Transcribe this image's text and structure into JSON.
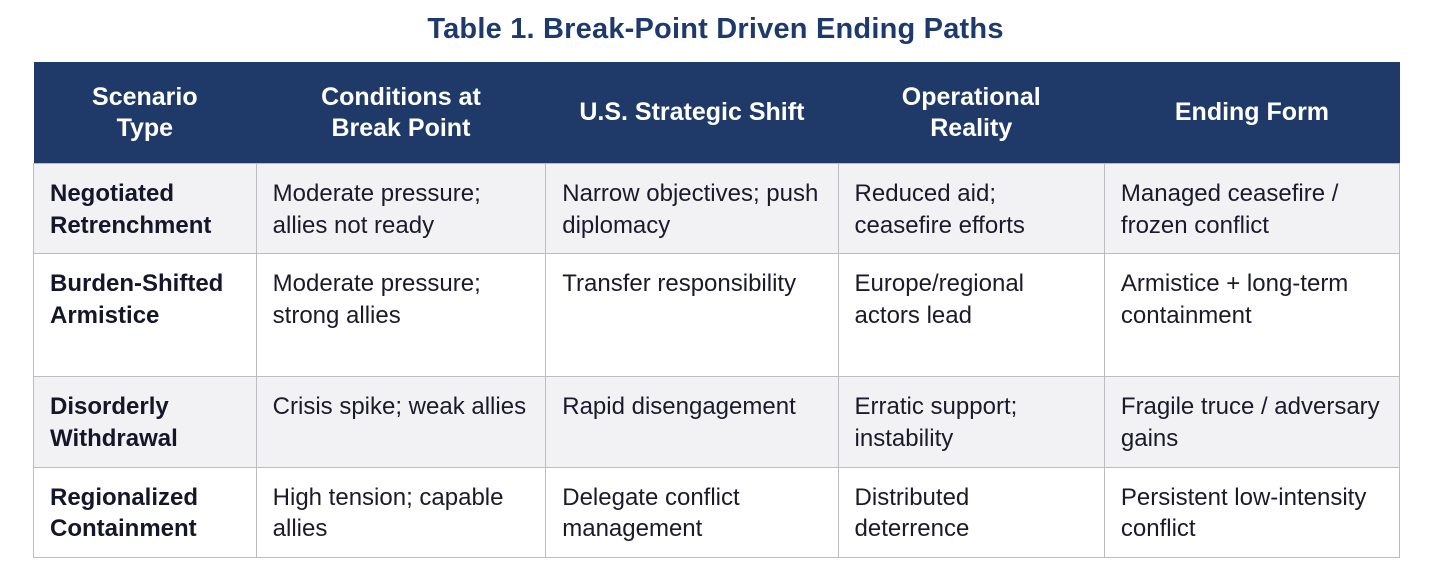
{
  "title": "Table 1. Break-Point Driven Ending Paths",
  "colors": {
    "header_bg": "#1F3A68",
    "title_text": "#1E3A6C",
    "alt_row_bg": "#F2F2F4",
    "border": "#BDBDC1",
    "body_text": "#1A1A2B",
    "header_text": "#FFFFFF"
  },
  "table": {
    "headers": [
      "Scenario\nType",
      "Conditions at\nBreak Point",
      "U.S. Strategic Shift",
      "Operational\nReality",
      "Ending Form"
    ],
    "rows": [
      [
        "Negotiated Retrenchment",
        "Moderate pressure; allies not ready",
        "Narrow objectives; push diplomacy",
        "Reduced aid; ceasefire efforts",
        "Managed ceasefire / frozen conflict"
      ],
      [
        "Burden-Shifted Armistice",
        "Moderate pressure; strong allies",
        "Transfer responsibility",
        "Europe/regional actors lead",
        "Armistice + long-term containment"
      ],
      [
        "Disorderly Withdrawal",
        "Crisis spike; weak allies",
        "Rapid disengagement",
        "Erratic support; instability",
        "Fragile truce / adversary gains"
      ],
      [
        "Regionalized Containment",
        "High tension; capable allies",
        "Delegate conflict management",
        "Distributed deterrence",
        "Persistent low-intensity conflict"
      ]
    ]
  }
}
